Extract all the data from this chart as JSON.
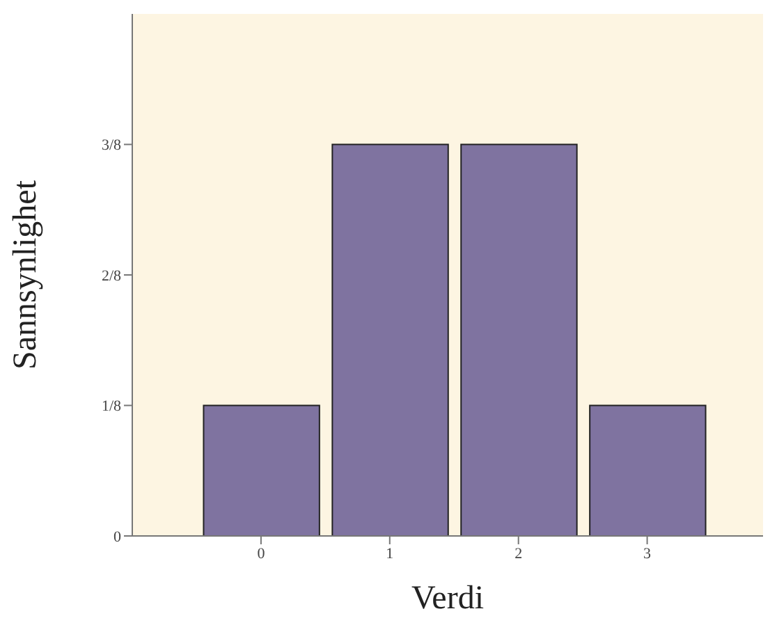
{
  "chart_data": {
    "type": "histogram",
    "xlabel": "Verdi",
    "ylabel": "Sannsynlighet",
    "bins": [
      -0.5,
      0.5,
      1.5,
      2.5,
      3.5
    ],
    "values": [
      0.125,
      0.375,
      0.375,
      0.125
    ],
    "color": "#7f73a0",
    "xlim": [
      -1,
      3.9
    ],
    "xticks": [
      0,
      1,
      2,
      3
    ],
    "ylim": [
      0,
      0.5
    ],
    "yticks": [
      0,
      {
        "value": 0.125,
        "label": "1/8"
      },
      {
        "value": 0.25,
        "label": "2/8"
      },
      {
        "value": 0.375,
        "label": "3/8"
      }
    ],
    "grid": false,
    "legend": false
  }
}
